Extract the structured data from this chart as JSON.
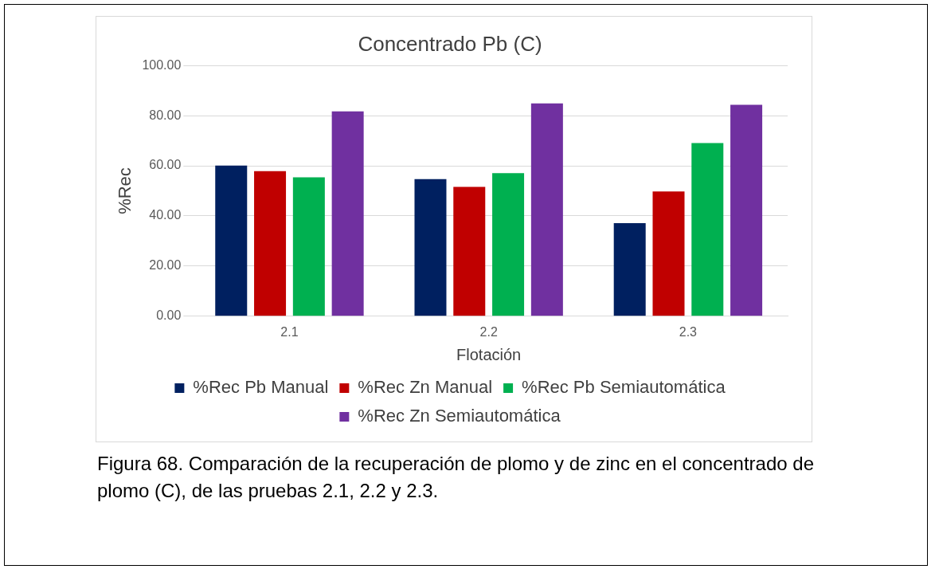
{
  "chart_data": {
    "type": "bar",
    "title": "Concentrado Pb (C)",
    "xlabel": "Flotación",
    "ylabel": "%Rec",
    "categories": [
      "2.1",
      "2.2",
      "2.3"
    ],
    "series": [
      {
        "name": "%Rec Pb Manual",
        "color": "#002060",
        "values": [
          60.1,
          54.7,
          37.1
        ]
      },
      {
        "name": "%Rec Zn Manual",
        "color": "#c00000",
        "values": [
          57.9,
          51.6,
          49.8
        ]
      },
      {
        "name": "%Rec Pb Semiautomática",
        "color": "#00b050",
        "values": [
          55.4,
          57.1,
          69.1
        ]
      },
      {
        "name": "%Rec Zn Semiautomática",
        "color": "#7030a0",
        "values": [
          81.7,
          84.9,
          84.3
        ]
      }
    ],
    "ylim": [
      0,
      100
    ],
    "yticks": [
      {
        "value": 0,
        "label": "0.00"
      },
      {
        "value": 20,
        "label": "20.00"
      },
      {
        "value": 40,
        "label": "40.00"
      },
      {
        "value": 60,
        "label": "60.00"
      },
      {
        "value": 80,
        "label": "80.00"
      },
      {
        "value": 100,
        "label": "100.00"
      }
    ],
    "grid": "y",
    "legend": "bottom",
    "annotations": [
      "Figura 68. Comparación de la recuperación de plomo y de zinc en el concentrado de plomo (C), de las pruebas 2.1, 2.2 y 2.3."
    ]
  }
}
